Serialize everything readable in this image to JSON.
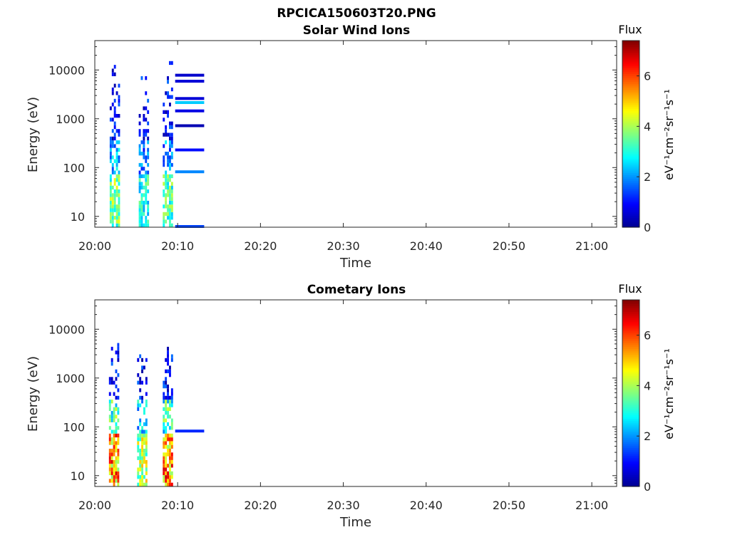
{
  "figure": {
    "title": "RPCICA150603T20.PNG"
  },
  "colors": {
    "colormap": [
      "#00008f",
      "#0000ff",
      "#0080ff",
      "#00ffff",
      "#80ff80",
      "#ffff00",
      "#ff8000",
      "#ff0000",
      "#800000"
    ],
    "axis": "#262626",
    "background": "#ffffff"
  },
  "chart_data": [
    {
      "type": "heatmap",
      "title": "Solar Wind Ions",
      "xlabel": "Time",
      "ylabel": "Energy (eV)",
      "y_scale": "log",
      "ylim": [
        6,
        40000
      ],
      "xlim": [
        "20:00",
        "21:03"
      ],
      "x_ticks": [
        "20:00",
        "20:10",
        "20:20",
        "20:30",
        "20:40",
        "20:50",
        "21:00"
      ],
      "y_ticks": [
        "10",
        "100",
        "1000",
        "10000"
      ],
      "colorbar": {
        "title": "Flux",
        "label": "eV⁻¹cm⁻²sr⁻¹s⁻¹",
        "range": [
          0,
          7.4
        ],
        "ticks": [
          "0",
          "2",
          "4",
          "6"
        ]
      },
      "bursts": [
        {
          "t": 2.3,
          "span": 1.0,
          "max_energy": 15000,
          "peak_flux": 4.6
        },
        {
          "t": 5.8,
          "span": 1.0,
          "max_energy": 15000,
          "peak_flux": 3.8
        },
        {
          "t": 8.7,
          "span": 1.0,
          "max_energy": 25000,
          "peak_flux": 4.2
        }
      ],
      "lines": [
        {
          "t_start": 9.7,
          "t_end": 13.2,
          "energy": 7800,
          "flux": 0.5
        },
        {
          "t_start": 9.7,
          "t_end": 13.2,
          "energy": 5900,
          "flux": 0.6
        },
        {
          "t_start": 9.7,
          "t_end": 13.2,
          "energy": 2600,
          "flux": 0.6
        },
        {
          "t_start": 9.7,
          "t_end": 13.2,
          "energy": 2150,
          "flux": 2.4
        },
        {
          "t_start": 9.7,
          "t_end": 13.2,
          "energy": 1450,
          "flux": 0.7
        },
        {
          "t_start": 9.7,
          "t_end": 13.2,
          "energy": 720,
          "flux": 0.3
        },
        {
          "t_start": 9.7,
          "t_end": 13.2,
          "energy": 230,
          "flux": 1.0
        },
        {
          "t_start": 9.7,
          "t_end": 13.2,
          "energy": 82,
          "flux": 1.9
        },
        {
          "t_start": 9.7,
          "t_end": 13.2,
          "energy": 6.2,
          "flux": 1.4
        }
      ]
    },
    {
      "type": "heatmap",
      "title": "Cometary Ions",
      "xlabel": "Time",
      "ylabel": "Energy (eV)",
      "y_scale": "log",
      "ylim": [
        6,
        40000
      ],
      "xlim": [
        "20:00",
        "21:03"
      ],
      "x_ticks": [
        "20:00",
        "20:10",
        "20:20",
        "20:30",
        "20:40",
        "20:50",
        "21:00"
      ],
      "y_ticks": [
        "10",
        "100",
        "1000",
        "10000"
      ],
      "colorbar": {
        "title": "Flux",
        "label": "eV⁻¹cm⁻²sr⁻¹s⁻¹",
        "range": [
          0,
          7.4
        ],
        "ticks": [
          "0",
          "2",
          "4",
          "6"
        ]
      },
      "bursts": [
        {
          "t": 2.3,
          "span": 1.2,
          "max_energy": 8000,
          "peak_flux": 6.8
        },
        {
          "t": 5.6,
          "span": 1.0,
          "max_energy": 3500,
          "peak_flux": 5.2
        },
        {
          "t": 8.8,
          "span": 1.2,
          "max_energy": 9000,
          "peak_flux": 6.9
        }
      ],
      "lines": [
        {
          "t_start": 9.7,
          "t_end": 13.2,
          "energy": 82,
          "flux": 1.2
        }
      ]
    }
  ]
}
